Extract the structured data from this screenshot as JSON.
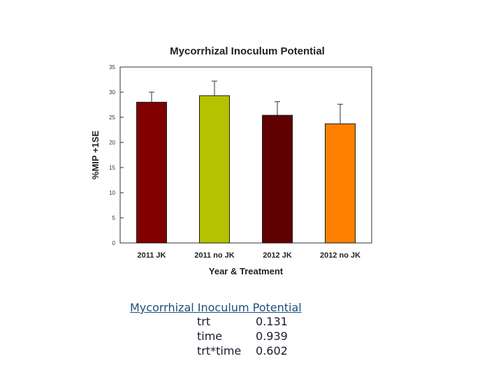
{
  "chart_data": {
    "type": "bar",
    "title": "Mycorrhizal Inoculum Potential",
    "xlabel": "Year & Treatment",
    "ylabel": "%MIP +1SE",
    "categories": [
      "2011 JK",
      "2011 no JK",
      "2012 JK",
      "2012 no JK"
    ],
    "values": [
      28,
      29.3,
      25.4,
      23.7
    ],
    "errors": [
      2,
      2.9,
      2.7,
      3.9
    ],
    "colors": [
      "#800000",
      "#b5c200",
      "#600000",
      "#ff8000"
    ],
    "ylim": [
      0,
      35
    ],
    "yticks": [
      0,
      5,
      10,
      15,
      20,
      25,
      30,
      35
    ],
    "grid": false,
    "legend": "none"
  },
  "stats": {
    "title": "Mycorrhizal Inoculum Potential",
    "rows": [
      {
        "term": "trt",
        "value": "0.131"
      },
      {
        "term": "time",
        "value": "0.939"
      },
      {
        "term": "trt*time",
        "value": "0.602"
      }
    ]
  }
}
